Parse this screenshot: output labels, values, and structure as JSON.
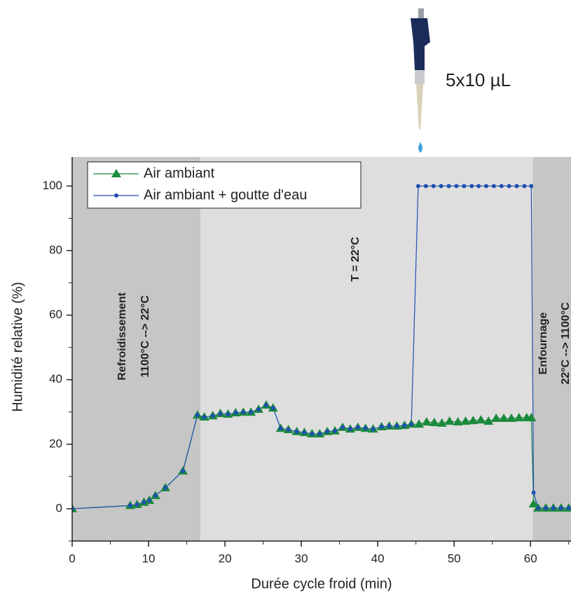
{
  "chart_data": {
    "type": "line",
    "annotations": [
      "5x10 µL"
    ],
    "x_label": "Durée cycle froid (min)",
    "y_label": "Humidité relative (%)",
    "xlim": [
      0,
      65.3
    ],
    "ylim": [
      -10,
      109
    ],
    "xticks": [
      0,
      10,
      20,
      30,
      40,
      50,
      60
    ],
    "yticks": [
      0,
      20,
      40,
      60,
      80,
      100
    ],
    "legend": "top-left",
    "shaded_regions": [
      {
        "x0": 0,
        "x1": 16.8,
        "color": "#c6c6c6",
        "labels": [
          "Refroidissement",
          "1100°C --> 22°C"
        ]
      },
      {
        "x0": 16.8,
        "x1": 60.3,
        "color": "#dedede",
        "labels": [
          "T = 22°C"
        ]
      },
      {
        "x0": 60.3,
        "x1": 65.3,
        "color": "#c6c6c6",
        "labels": [
          "Enfournage",
          "22°C --> 1100°C"
        ]
      }
    ],
    "series": [
      {
        "name": "Air ambiant",
        "color": "#1a8a3c",
        "marker": "triangle",
        "x": [
          0,
          7.6,
          8.5,
          9.4,
          10.1,
          10.9,
          12.2,
          14.5,
          16.4,
          17.3,
          18.4,
          19.4,
          20.4,
          21.4,
          22.4,
          23.4,
          24.4,
          25.4,
          26.3,
          27.3,
          28.3,
          29.4,
          30.4,
          31.4,
          32.4,
          33.4,
          34.4,
          35.4,
          36.4,
          37.4,
          38.4,
          39.4,
          40.5,
          41.5,
          42.5,
          43.5,
          44.4,
          45.4,
          46.4,
          47.4,
          48.4,
          49.4,
          50.5,
          51.5,
          52.5,
          53.5,
          54.5,
          55.5,
          56.5,
          57.5,
          58.5,
          59.5,
          60.1,
          60.4,
          61,
          62,
          63,
          64,
          65
        ],
        "values": [
          0,
          1,
          1.3,
          2,
          2.6,
          4.1,
          6.5,
          11.7,
          29,
          28.4,
          28.8,
          29.5,
          29.3,
          29.7,
          29.9,
          29.9,
          30.8,
          32.1,
          31.2,
          24.9,
          24.5,
          23.9,
          23.6,
          23.2,
          23.2,
          23.9,
          24.1,
          25.2,
          24.7,
          25.2,
          24.9,
          24.7,
          25.4,
          25.6,
          25.6,
          25.8,
          26.2,
          26.2,
          26.9,
          26.7,
          26.5,
          27.1,
          26.9,
          27.1,
          27.3,
          27.5,
          27.1,
          28,
          28,
          28,
          28.2,
          28.2,
          28.2,
          1.5,
          0.2,
          0.2,
          0.2,
          0.2,
          0.2
        ]
      },
      {
        "name": "Air ambiant + goutte d'eau",
        "color": "#1f4fb4",
        "marker": "circle",
        "x": [
          0,
          7.6,
          8.5,
          9.4,
          10.1,
          10.9,
          12.2,
          14.5,
          16.4,
          17.3,
          18.4,
          19.4,
          20.4,
          21.4,
          22.4,
          23.4,
          24.4,
          25.4,
          26.3,
          27.3,
          28.3,
          29.4,
          30.4,
          31.4,
          32.4,
          33.4,
          34.4,
          35.4,
          36.4,
          37.4,
          38.4,
          39.4,
          40.5,
          41.5,
          42.5,
          43.5,
          44.4,
          45.3,
          46.3,
          47.3,
          48.3,
          49.3,
          50.3,
          51.3,
          52.3,
          53.2,
          54.2,
          55.2,
          56.2,
          57.2,
          58.2,
          59.2,
          60.1,
          60.4,
          61,
          62,
          63,
          64,
          65
        ],
        "values": [
          0,
          1,
          1.3,
          2,
          2.6,
          4.1,
          6.5,
          11.7,
          29,
          28.4,
          28.8,
          29.5,
          29.3,
          29.7,
          29.9,
          29.9,
          30.8,
          32.1,
          31.2,
          24.9,
          24.5,
          23.9,
          23.6,
          23.2,
          23.2,
          23.9,
          24.1,
          25.2,
          24.7,
          25.2,
          24.9,
          24.7,
          25.4,
          25.6,
          25.6,
          25.8,
          26.2,
          100,
          100,
          100,
          100,
          100,
          100,
          100,
          100,
          100,
          100,
          100,
          100,
          100,
          100,
          100,
          100,
          5,
          0.2,
          0.2,
          0.2,
          0.2,
          0.2
        ]
      }
    ]
  }
}
